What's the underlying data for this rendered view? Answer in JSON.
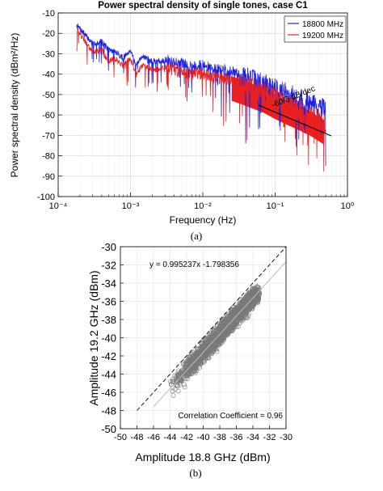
{
  "colors": {
    "series_18800": "#2020e0",
    "series_19200": "#e82020",
    "scatter": "#7a7a7a",
    "fit": "#bdbdbd",
    "identity": "#000000"
  },
  "chart_data": [
    {
      "type": "line",
      "title": "Power spectral density of single tones, case C1",
      "xlabel": "Frequency (Hz)",
      "ylabel": "Power spectral density (dBm²/Hz)",
      "xscale": "log",
      "xlim": [
        0.0001,
        1
      ],
      "ylim": [
        -100,
        -10
      ],
      "xtick_labels": [
        "10⁻⁴",
        "10⁻³",
        "10⁻²",
        "10⁻¹",
        "10⁰"
      ],
      "ytick_labels": [
        "-10",
        "-20",
        "-30",
        "-40",
        "-50",
        "-60",
        "-70",
        "-80",
        "-90",
        "-100"
      ],
      "grid": true,
      "legend_position": "top-right",
      "annotation": "-60/3 dB/dec",
      "panel_label": "(a)",
      "series": [
        {
          "name": "18800 MHz",
          "color": "#2020e0",
          "x": [
            0.00018,
            0.0003,
            0.0004,
            0.0005,
            0.0006,
            0.0008,
            0.001,
            0.0012,
            0.0015,
            0.002,
            0.003,
            0.005,
            0.007,
            0.01,
            0.015,
            0.02,
            0.03,
            0.05,
            0.07,
            0.1,
            0.15,
            0.2,
            0.3,
            0.5
          ],
          "y": [
            -16,
            -25,
            -24,
            -28,
            -29,
            -32,
            -28,
            -36,
            -31,
            -34,
            -33,
            -35,
            -36,
            -36,
            -38,
            -38,
            -40,
            -43,
            -45,
            -47,
            -50,
            -52,
            -54,
            -58
          ]
        },
        {
          "name": "19200 MHz",
          "color": "#e82020",
          "x": [
            0.00018,
            0.0003,
            0.0004,
            0.0005,
            0.0006,
            0.0008,
            0.001,
            0.0012,
            0.0015,
            0.002,
            0.003,
            0.005,
            0.007,
            0.01,
            0.015,
            0.02,
            0.03,
            0.05,
            0.07,
            0.1,
            0.15,
            0.2,
            0.3,
            0.5
          ],
          "y": [
            -18,
            -29,
            -28,
            -34,
            -32,
            -36,
            -32,
            -40,
            -35,
            -38,
            -37,
            -39,
            -40,
            -40,
            -42,
            -42,
            -44,
            -47,
            -49,
            -52,
            -55,
            -57,
            -60,
            -65
          ]
        }
      ]
    },
    {
      "type": "scatter",
      "xlabel": "Amplitude 18.8 GHz (dBm)",
      "ylabel": "Amplitude 19.2 GHz (dBm)",
      "xlim": [
        -50,
        -30
      ],
      "ylim": [
        -50,
        -30
      ],
      "xtick_labels": [
        "-50",
        "-48",
        "-46",
        "-44",
        "-42",
        "-40",
        "-38",
        "-36",
        "-34",
        "-32",
        "-30"
      ],
      "ytick_labels": [
        "-30",
        "-32",
        "-34",
        "-36",
        "-38",
        "-40",
        "-42",
        "-44",
        "-46",
        "-48",
        "-50"
      ],
      "grid": true,
      "fit_label": "y = 0.995237x -1.798356",
      "fit": {
        "slope": 0.995237,
        "intercept": -1.798356
      },
      "correlation_label": "Correlation Coefficient = 0.96",
      "panel_label": "(b)"
    }
  ]
}
